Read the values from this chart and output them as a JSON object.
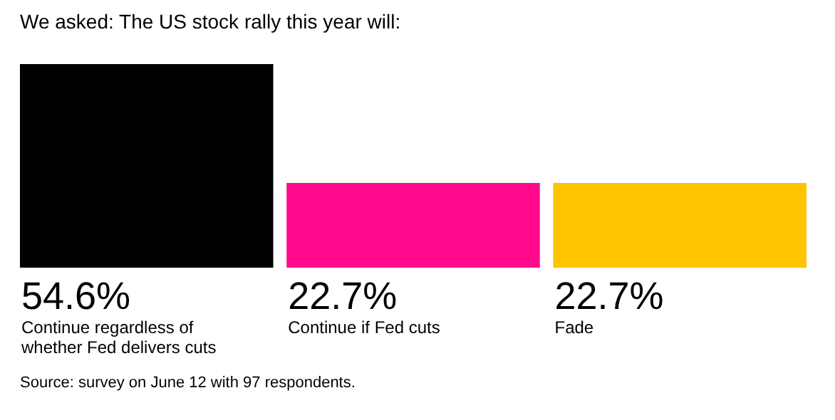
{
  "chart_data": {
    "type": "bar",
    "title": "We asked: The US stock rally this year will:",
    "categories": [
      "Continue regardless of whether Fed delivers cuts",
      "Continue if Fed cuts",
      "Fade"
    ],
    "values": [
      54.6,
      22.7,
      22.7
    ],
    "colors": [
      "#000000",
      "#ff0a8c",
      "#ffc300"
    ],
    "value_labels": [
      "54.6%",
      "22.7%",
      "22.7%"
    ],
    "annotations": [
      "Source: survey on June 12 with 97 respondents."
    ]
  }
}
